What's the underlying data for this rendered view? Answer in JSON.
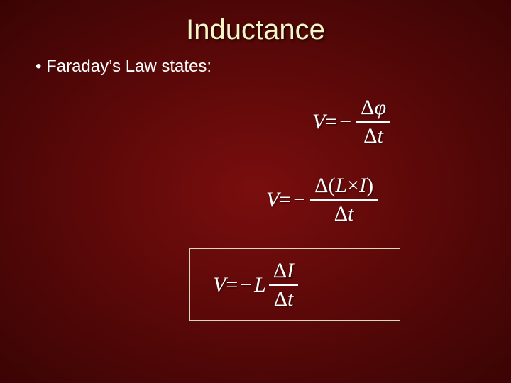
{
  "slide": {
    "title": "Inductance",
    "bullet": "Faraday’s Law states:",
    "background_gradient": [
      "#7a0e0e",
      "#5a0808",
      "#3a0404"
    ],
    "title_color": "#f5f5c8",
    "text_color": "#ffffff",
    "title_fontsize": 40,
    "body_fontsize": 24,
    "eq_fontsize": 30,
    "eq_font": "Times New Roman"
  },
  "equations": {
    "eq1": {
      "lhs": "V",
      "eq": " = ",
      "minus": "−",
      "num_delta": "Δ",
      "num_var": "φ",
      "den_delta": "Δ",
      "den_var": "t"
    },
    "eq2": {
      "lhs": "V",
      "eq": " = ",
      "minus": "−",
      "num_delta": "Δ",
      "num_open": "(",
      "num_L": "L",
      "num_times": "×",
      "num_I": "I",
      "num_close": ")",
      "den_delta": "Δ",
      "den_var": "t"
    },
    "eq3": {
      "lhs": "V",
      "eq": " = ",
      "minus": "−",
      "coef": "L",
      "num_delta": "Δ",
      "num_var": "I",
      "den_delta": "Δ",
      "den_var": "t"
    }
  },
  "box": {
    "border_color": "#d8d8c0",
    "border_width": 1
  }
}
